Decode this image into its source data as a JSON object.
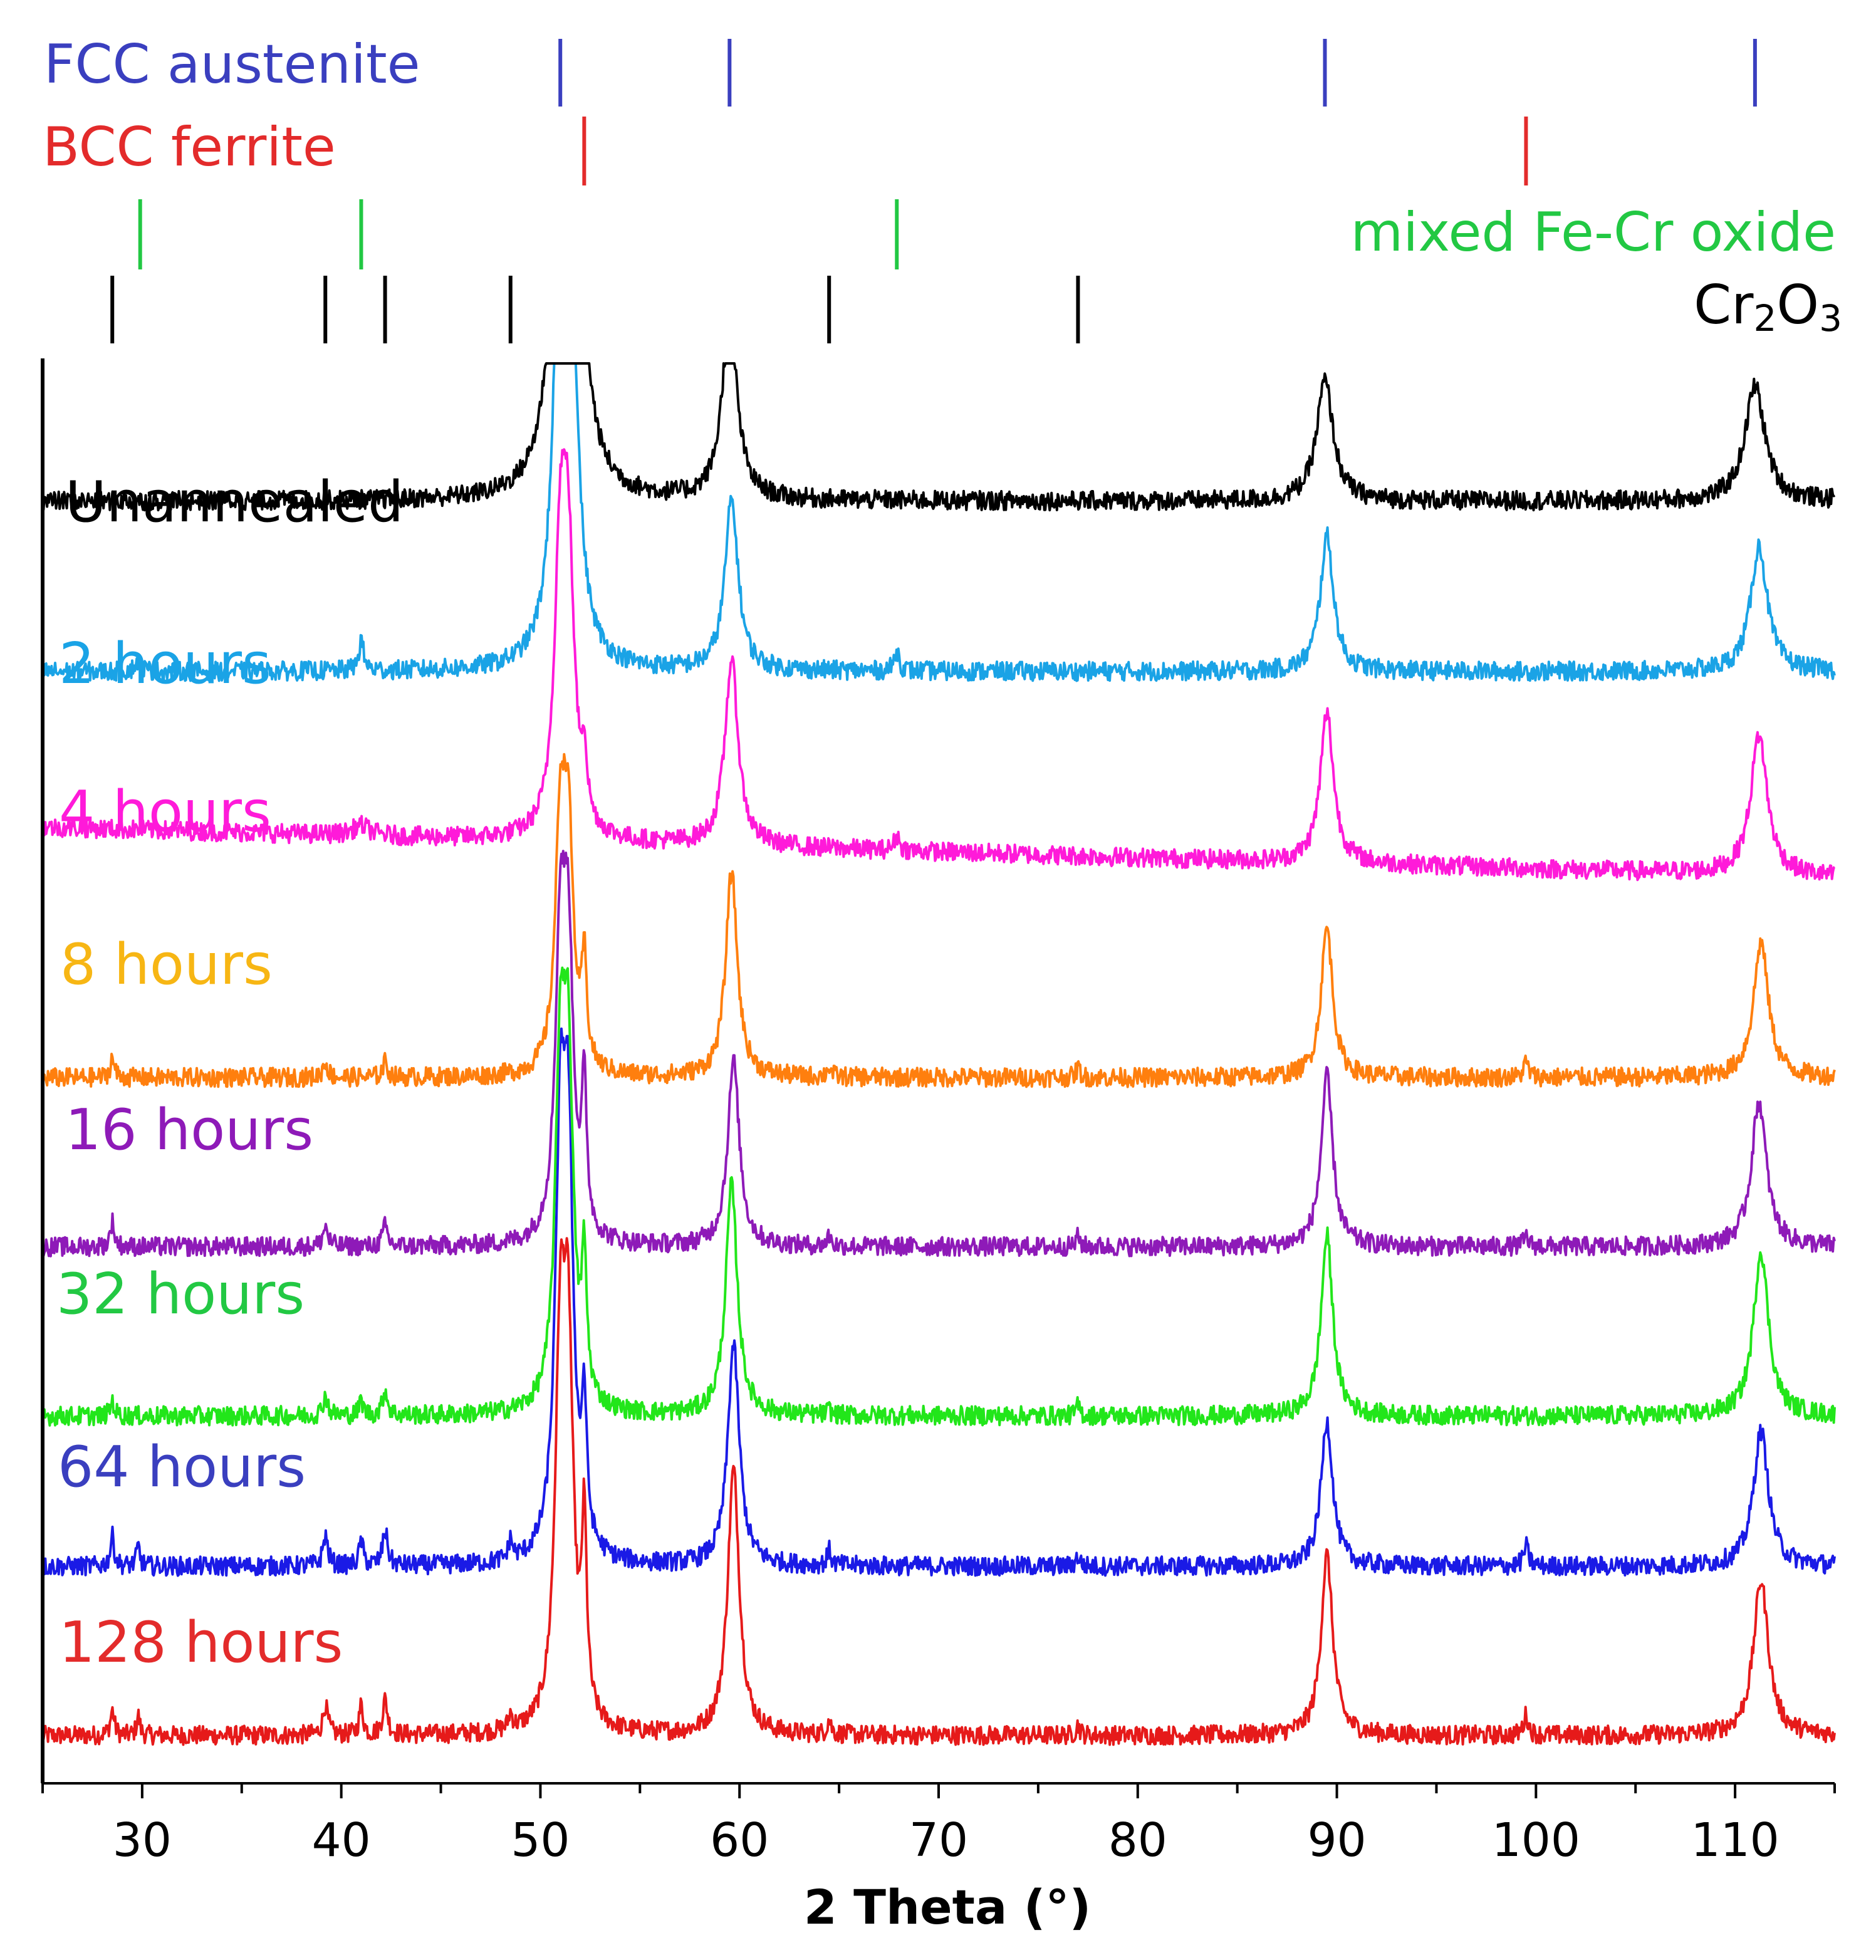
{
  "chart_data": {
    "type": "line",
    "xlabel": "2 Theta (°)",
    "xlim": [
      25,
      115
    ],
    "xticks": [
      30,
      40,
      50,
      60,
      70,
      80,
      90,
      100,
      110
    ],
    "reference_markers": [
      {
        "name": "FCC austenite",
        "color": "#3a3fbf",
        "positions": [
          51.0,
          59.5,
          89.4,
          111.0
        ]
      },
      {
        "name": "BCC ferrite",
        "color": "#e32b2b",
        "positions": [
          52.2,
          99.5
        ]
      },
      {
        "name": "mixed Fe-Cr oxide",
        "color": "#22c843",
        "positions": [
          29.9,
          41.0,
          67.9
        ]
      },
      {
        "name": "Cr2O3",
        "label_main": "Cr",
        "label_sub1": "2",
        "label_mid": "O",
        "label_sub2": "3",
        "color": "#000000",
        "positions": [
          28.5,
          39.2,
          42.2,
          48.5,
          64.5,
          77.0
        ]
      }
    ],
    "series": [
      {
        "name": "Unannealed",
        "color": "#000000",
        "baseline": 2.0,
        "peaks": [
          [
            51.1,
            9.0,
            0.45
          ],
          [
            51.6,
            8.6,
            0.45
          ],
          [
            59.5,
            3.7,
            0.45
          ],
          [
            89.4,
            2.4,
            0.5
          ],
          [
            111.0,
            2.3,
            0.6
          ]
        ]
      },
      {
        "name": "2 hours",
        "color": "#1aa3e6",
        "baseline": 1.6,
        "peaks": [
          [
            51.0,
            7.6,
            0.4
          ],
          [
            51.5,
            7.2,
            0.4
          ],
          [
            59.6,
            3.4,
            0.4
          ],
          [
            89.5,
            2.7,
            0.4
          ],
          [
            111.2,
            2.5,
            0.5
          ],
          [
            41.0,
            0.6,
            0.15
          ],
          [
            29.8,
            0.2,
            0.2
          ],
          [
            67.9,
            0.4,
            0.15
          ]
        ]
      },
      {
        "name": "4 hours",
        "color": "#ff1ad9",
        "baseline": 0.0,
        "peaks": [
          [
            51.0,
            5.2,
            0.35
          ],
          [
            51.4,
            5.0,
            0.35
          ],
          [
            52.2,
            1.2,
            0.15
          ],
          [
            59.6,
            3.7,
            0.4
          ],
          [
            89.5,
            3.0,
            0.4
          ],
          [
            111.2,
            2.8,
            0.5
          ],
          [
            41.0,
            0.2,
            0.5
          ],
          [
            67.9,
            0.3,
            0.15
          ]
        ],
        "background_decline": 1.0
      },
      {
        "name": "8 hours",
        "color": "#ff7f0e",
        "baseline": 0.0,
        "peaks": [
          [
            51.0,
            4.6,
            0.3
          ],
          [
            51.4,
            4.4,
            0.3
          ],
          [
            52.2,
            2.0,
            0.15
          ],
          [
            59.6,
            4.1,
            0.35
          ],
          [
            89.5,
            3.0,
            0.35
          ],
          [
            111.3,
            2.7,
            0.45
          ],
          [
            28.5,
            0.4,
            0.12
          ],
          [
            39.2,
            0.3,
            0.15
          ],
          [
            42.2,
            0.3,
            0.15
          ],
          [
            64.5,
            0.2,
            0.12
          ],
          [
            77.0,
            0.2,
            0.12
          ],
          [
            99.5,
            0.3,
            0.15
          ]
        ]
      },
      {
        "name": "16 hours",
        "color": "#8e1ab8",
        "baseline": 0.0,
        "peaks": [
          [
            51.0,
            5.6,
            0.3
          ],
          [
            51.4,
            5.4,
            0.3
          ],
          [
            52.2,
            2.8,
            0.15
          ],
          [
            59.7,
            3.7,
            0.35
          ],
          [
            89.5,
            3.4,
            0.35
          ],
          [
            111.2,
            2.9,
            0.45
          ],
          [
            28.5,
            0.5,
            0.12
          ],
          [
            39.2,
            0.4,
            0.15
          ],
          [
            42.2,
            0.4,
            0.15
          ],
          [
            64.5,
            0.2,
            0.12
          ],
          [
            77.0,
            0.2,
            0.12
          ],
          [
            99.5,
            0.2,
            0.15
          ]
        ]
      },
      {
        "name": "32 hours",
        "color": "#22e61a",
        "baseline": 0.0,
        "peaks": [
          [
            51.0,
            6.4,
            0.3
          ],
          [
            51.4,
            6.2,
            0.3
          ],
          [
            52.2,
            2.6,
            0.15
          ],
          [
            59.6,
            4.6,
            0.35
          ],
          [
            89.5,
            3.6,
            0.35
          ],
          [
            111.3,
            3.3,
            0.45
          ],
          [
            28.5,
            0.3,
            0.12
          ],
          [
            39.2,
            0.4,
            0.15
          ],
          [
            41.0,
            0.3,
            0.12
          ],
          [
            42.2,
            0.5,
            0.15
          ],
          [
            64.5,
            0.1,
            0.12
          ],
          [
            77.0,
            0.2,
            0.12
          ]
        ]
      },
      {
        "name": "64 hours",
        "color": "#1a1ae6",
        "baseline": 0.0,
        "peaks": [
          [
            51.0,
            7.6,
            0.3
          ],
          [
            51.4,
            7.4,
            0.3
          ],
          [
            52.2,
            2.6,
            0.15
          ],
          [
            59.7,
            4.4,
            0.35
          ],
          [
            89.5,
            2.9,
            0.35
          ],
          [
            111.3,
            2.7,
            0.45
          ],
          [
            28.5,
            0.6,
            0.12
          ],
          [
            29.8,
            0.4,
            0.1
          ],
          [
            39.2,
            0.6,
            0.15
          ],
          [
            41.0,
            0.5,
            0.12
          ],
          [
            42.2,
            0.7,
            0.15
          ],
          [
            48.5,
            0.4,
            0.12
          ],
          [
            64.5,
            0.3,
            0.12
          ],
          [
            77.0,
            0.2,
            0.12
          ],
          [
            99.5,
            0.4,
            0.15
          ]
        ]
      },
      {
        "name": "128 hours",
        "color": "#e61a1a",
        "baseline": 0.0,
        "peaks": [
          [
            51.0,
            7.0,
            0.3
          ],
          [
            51.4,
            6.8,
            0.3
          ],
          [
            52.2,
            3.7,
            0.15
          ],
          [
            59.7,
            5.3,
            0.35
          ],
          [
            89.5,
            3.6,
            0.35
          ],
          [
            111.3,
            3.1,
            0.45
          ],
          [
            28.5,
            0.5,
            0.12
          ],
          [
            29.8,
            0.4,
            0.1
          ],
          [
            39.2,
            0.6,
            0.15
          ],
          [
            41.0,
            0.6,
            0.12
          ],
          [
            42.2,
            0.7,
            0.15
          ],
          [
            48.5,
            0.3,
            0.12
          ],
          [
            64.5,
            0.3,
            0.12
          ],
          [
            77.0,
            0.2,
            0.12
          ],
          [
            99.5,
            0.4,
            0.15
          ]
        ]
      }
    ]
  }
}
